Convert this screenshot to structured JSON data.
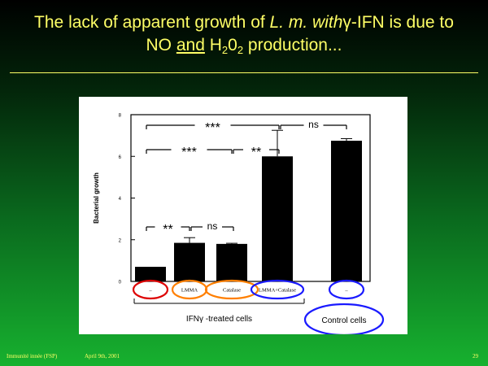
{
  "slide": {
    "title_part1": "The lack of apparent growth of ",
    "title_italic": "L. m. with",
    "title_gamma": "γ",
    "title_part2": "-IFN is due to",
    "title_line2_a": "NO ",
    "title_line2_and": "and",
    "title_line2_b": " H",
    "title_sub1": "2",
    "title_line2_c": "0",
    "title_sub2": "2",
    "title_line2_d": " production...",
    "footer_left": "Immunité innée (FSP)",
    "footer_date": "April 9th, 2001",
    "page_number": "29",
    "text_color": "#ffff66"
  },
  "chart_data": {
    "type": "bar",
    "ylabel": "Bacterial growth",
    "ylim": [
      0,
      8
    ],
    "yticks": [
      "0",
      "2",
      "4",
      "6",
      "8"
    ],
    "categories": [
      "–",
      "LMMA",
      "Catalase",
      "LMMA+Catalase",
      "–"
    ],
    "values": [
      0.7,
      1.85,
      1.8,
      6.0,
      6.75
    ],
    "errors": [
      0,
      0.25,
      0.03,
      1.25,
      0.1
    ],
    "group_labels": [
      "IFNγ -treated cells",
      "Control cells"
    ],
    "significance": [
      {
        "from": 0,
        "to": 3,
        "label": "***"
      },
      {
        "from": 3,
        "to": 4,
        "label": "ns"
      },
      {
        "from": 0,
        "to": 2,
        "label": "***"
      },
      {
        "from": 2,
        "to": 3,
        "label": "**"
      },
      {
        "from": 0,
        "to": 1,
        "label": "**"
      },
      {
        "from": 1,
        "to": 2,
        "label": "ns"
      }
    ],
    "circle_colors": [
      "#dd0000",
      "#ff7f00",
      "#ff7f00",
      "#1a1aff",
      "#1a1aff"
    ]
  }
}
